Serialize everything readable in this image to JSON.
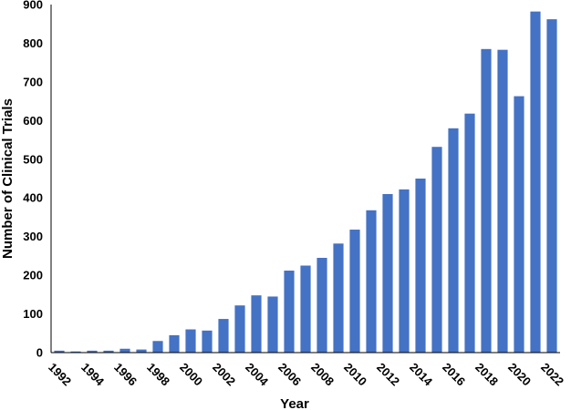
{
  "chart_data": {
    "type": "bar",
    "title": "",
    "xlabel": "Year",
    "ylabel": "Number of Clinical Trials",
    "ylim": [
      0,
      900
    ],
    "yticks": [
      0,
      100,
      200,
      300,
      400,
      500,
      600,
      700,
      800,
      900
    ],
    "categories": [
      "1992",
      "1993",
      "1994",
      "1995",
      "1996",
      "1997",
      "1998",
      "1999",
      "2000",
      "2001",
      "2002",
      "2003",
      "2004",
      "2005",
      "2006",
      "2007",
      "2008",
      "2009",
      "2010",
      "2011",
      "2012",
      "2013",
      "2014",
      "2015",
      "2016",
      "2017",
      "2018",
      "2019",
      "2020",
      "2021",
      "2022"
    ],
    "xtick_labels": [
      "1992",
      "1994",
      "1996",
      "1998",
      "2000",
      "2002",
      "2004",
      "2006",
      "2008",
      "2010",
      "2012",
      "2014",
      "2016",
      "2018",
      "2020",
      "2022"
    ],
    "values": [
      5,
      3,
      5,
      5,
      10,
      8,
      30,
      45,
      60,
      57,
      87,
      122,
      148,
      145,
      212,
      225,
      245,
      282,
      318,
      368,
      410,
      422,
      450,
      532,
      580,
      618,
      785,
      783,
      663,
      882,
      862
    ],
    "bar_color": "#4472C4",
    "grid": false,
    "legend": "none"
  }
}
